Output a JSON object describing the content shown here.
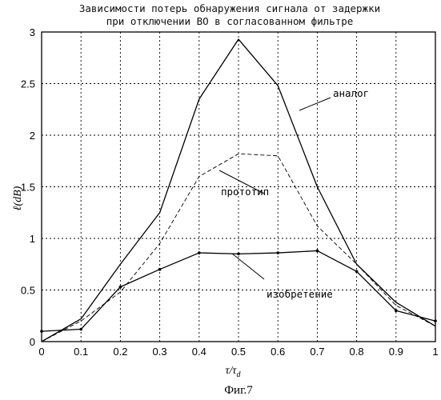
{
  "chart_data": {
    "type": "line",
    "title_line1": "Зависимости потерь обнаружения сигнала от задержки",
    "title_line2": "при отключении ВО в согласованном фильтре",
    "xlabel": "τ/τ",
    "xlabel_sub": "d",
    "ylabel": "ℓ(dB)",
    "xlim": [
      0,
      1
    ],
    "ylim": [
      0,
      3
    ],
    "grid": true,
    "xticks": [
      "0",
      "0.1",
      "0.2",
      "0.3",
      "0.4",
      "0.5",
      "0.6",
      "0.7",
      "0.8",
      "0.9",
      "1"
    ],
    "yticks": [
      "0",
      "0.5",
      "1",
      "1.5",
      "2",
      "2.5",
      "3"
    ],
    "x": [
      0,
      0.1,
      0.2,
      0.3,
      0.4,
      0.5,
      0.6,
      0.7,
      0.8,
      0.9,
      1.0
    ],
    "series": [
      {
        "name": "аналог",
        "style": "solid",
        "values": [
          0.0,
          0.22,
          0.75,
          1.25,
          2.35,
          2.93,
          2.48,
          1.5,
          0.75,
          0.38,
          0.15
        ]
      },
      {
        "name": "прототип",
        "style": "dashed",
        "values": [
          0.0,
          0.2,
          0.48,
          0.95,
          1.6,
          1.82,
          1.8,
          1.12,
          0.75,
          0.35,
          0.15
        ]
      },
      {
        "name": "изобретение",
        "style": "solid-markers",
        "values": [
          0.1,
          0.12,
          0.53,
          0.7,
          0.86,
          0.85,
          0.86,
          0.88,
          0.68,
          0.3,
          0.2
        ]
      }
    ],
    "annotations": [
      "аналог",
      "прототип",
      "изобретение"
    ]
  },
  "caption": "Фиг.7"
}
